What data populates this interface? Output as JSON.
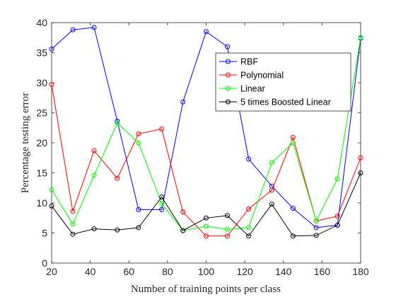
{
  "chart_data": {
    "type": "line",
    "xlabel": "Number of training points per class",
    "ylabel": "Percentage testing error",
    "xlim": [
      20,
      180
    ],
    "ylim": [
      0,
      40
    ],
    "xticks": [
      20,
      40,
      60,
      80,
      100,
      120,
      140,
      160,
      180
    ],
    "yticks": [
      0,
      5,
      10,
      15,
      20,
      25,
      30,
      35,
      40
    ],
    "grid": false,
    "legend_position": "top-right",
    "x": [
      20,
      31,
      42,
      54,
      65,
      77,
      88,
      100,
      111,
      122,
      134,
      145,
      157,
      168,
      180
    ],
    "series": [
      {
        "name": "RBF",
        "color": "#0000ff",
        "values": [
          35.6,
          38.8,
          39.2,
          23.6,
          8.9,
          8.9,
          26.8,
          38.5,
          36.0,
          17.3,
          12.8,
          9.1,
          5.9,
          6.3,
          37.4
        ]
      },
      {
        "name": "Polynomial",
        "color": "#ff0000",
        "values": [
          29.7,
          8.6,
          18.7,
          14.1,
          21.5,
          22.3,
          8.5,
          4.5,
          4.5,
          9.0,
          12.1,
          20.9,
          7.0,
          7.8,
          17.5
        ]
      },
      {
        "name": "Linear",
        "color": "#00ff00",
        "values": [
          12.2,
          6.5,
          14.6,
          23.3,
          20.0,
          9.9,
          5.4,
          6.1,
          5.6,
          5.9,
          16.7,
          20.0,
          7.0,
          14.0,
          37.5
        ]
      },
      {
        "name": "5 times Boosted Linear",
        "color": "#000000",
        "values": [
          9.5,
          4.8,
          5.7,
          5.5,
          5.9,
          11.0,
          5.4,
          7.5,
          7.9,
          4.5,
          9.8,
          4.5,
          4.6,
          6.3,
          15.0
        ]
      }
    ]
  }
}
